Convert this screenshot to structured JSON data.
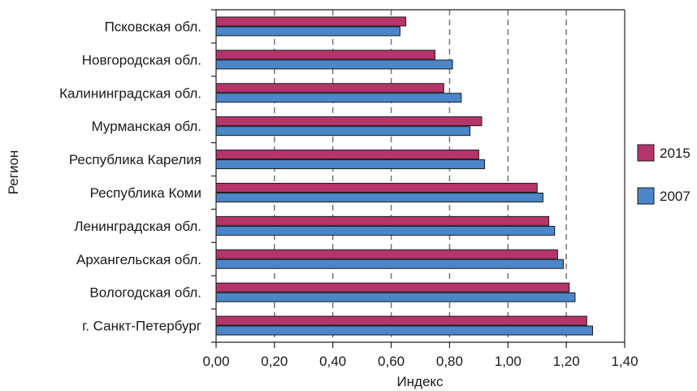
{
  "chart_data": {
    "type": "bar",
    "orientation": "horizontal",
    "categories": [
      "Псковская обл.",
      "Новгородская обл.",
      "Калининградская обл.",
      "Мурманская обл.",
      "Республика Карелия",
      "Республика Коми",
      "Ленинградская обл.",
      "Архангельская обл.",
      "Вологодская обл.",
      "г. Санкт-Петербург"
    ],
    "series": [
      {
        "name": "2015",
        "color": "#b5356b",
        "values": [
          0.65,
          0.75,
          0.78,
          0.91,
          0.9,
          1.1,
          1.14,
          1.17,
          1.21,
          1.27
        ]
      },
      {
        "name": "2007",
        "color": "#4a86c8",
        "values": [
          0.63,
          0.81,
          0.84,
          0.87,
          0.92,
          1.12,
          1.16,
          1.19,
          1.23,
          1.29
        ]
      }
    ],
    "xlabel": "Индекс",
    "ylabel": "Регион",
    "xlim": [
      0,
      1.4
    ],
    "xticks": [
      "0,00",
      "0,20",
      "0,40",
      "0,60",
      "0,80",
      "1,00",
      "1,20",
      "1,40"
    ],
    "grid": "vertical dashed",
    "legend": "right"
  }
}
